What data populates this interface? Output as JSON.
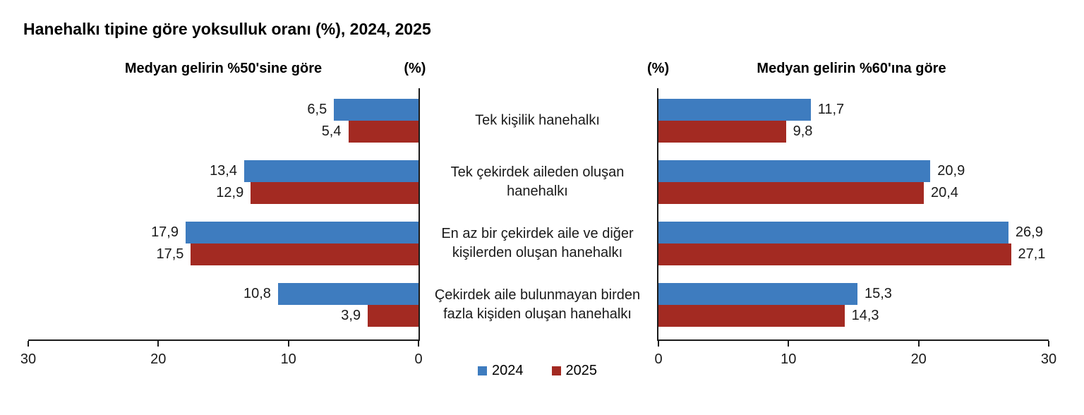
{
  "title": "Hanehalkı tipine göre yoksulluk oranı (%), 2024, 2025",
  "colors": {
    "series_2024": "#3E7CBF",
    "series_2025": "#A32A22",
    "axis": "#1a1a1a"
  },
  "chart_data": {
    "type": "bar",
    "orientation": "horizontal-tornado",
    "xlim": [
      0,
      30
    ],
    "grid": false,
    "categories": [
      "Tek kişilik hanehalkı",
      "Tek çekirdek aileden oluşan hanehalkı",
      "En az bir çekirdek aile ve diğer kişilerden oluşan hanehalkı",
      "Çekirdek aile bulunmayan birden fazla kişiden oluşan hanehalkı"
    ],
    "panels": [
      {
        "id": "left",
        "header": "Medyan gelirin %50'sine göre",
        "unit_label": "(%)",
        "direction": "rtl",
        "axis_ticks": [
          30,
          20,
          10,
          0
        ],
        "series": [
          {
            "name": "2024",
            "color": "#3E7CBF",
            "values": [
              6.5,
              13.4,
              17.9,
              10.8
            ]
          },
          {
            "name": "2025",
            "color": "#A32A22",
            "values": [
              5.4,
              12.9,
              17.5,
              3.9
            ]
          }
        ]
      },
      {
        "id": "right",
        "header": "Medyan gelirin %60'ına göre",
        "unit_label": "(%)",
        "direction": "ltr",
        "axis_ticks": [
          0,
          10,
          20,
          30
        ],
        "series": [
          {
            "name": "2024",
            "color": "#3E7CBF",
            "values": [
              11.7,
              20.9,
              26.9,
              15.3
            ]
          },
          {
            "name": "2025",
            "color": "#A32A22",
            "values": [
              9.8,
              20.4,
              27.1,
              14.3
            ]
          }
        ]
      }
    ],
    "legend": [
      {
        "label": "2024",
        "color": "#3E7CBF"
      },
      {
        "label": "2025",
        "color": "#A32A22"
      }
    ],
    "legend_position": "bottom-center"
  }
}
